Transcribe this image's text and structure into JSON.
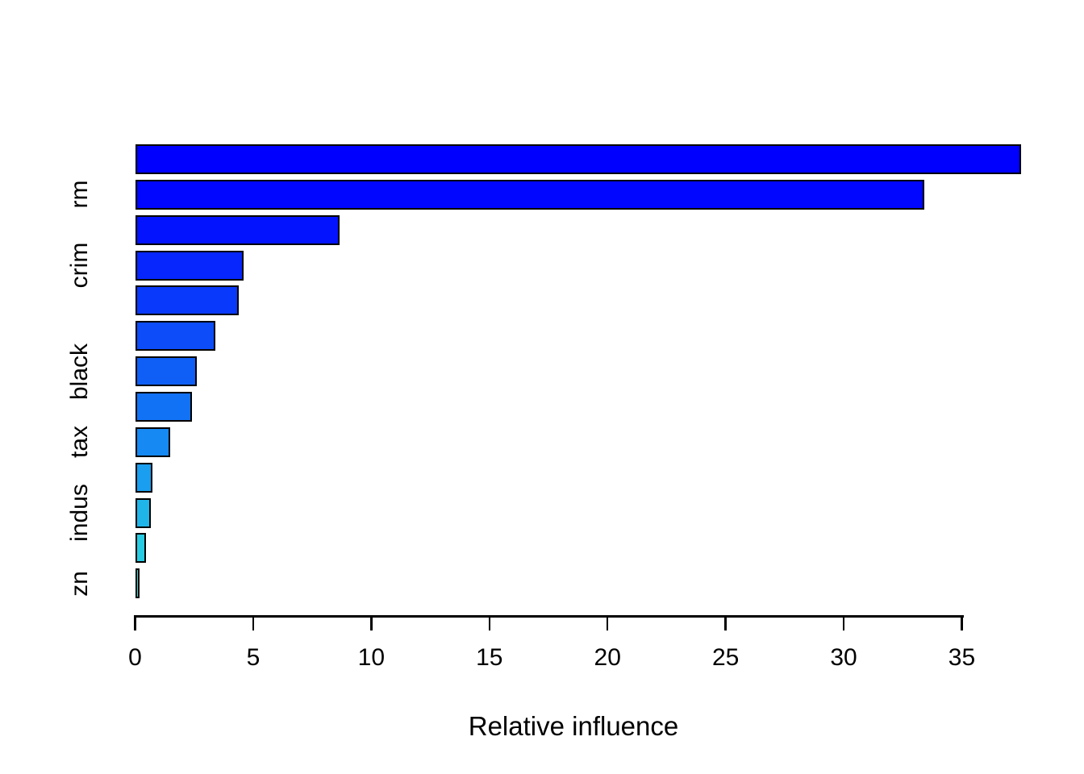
{
  "chart_data": {
    "type": "bar",
    "orientation": "horizontal",
    "title": "",
    "xlabel": "Relative influence",
    "ylabel": "",
    "xlim": [
      0,
      37.5
    ],
    "axis_range": [
      0,
      35
    ],
    "x_ticks": [
      0,
      5,
      10,
      15,
      20,
      25,
      30,
      35
    ],
    "grid": "off",
    "legend": "none",
    "bars": [
      {
        "label": "",
        "value": 37.5,
        "color": "#0000ff"
      },
      {
        "label": "rm",
        "value": 33.4,
        "color": "#0006ff"
      },
      {
        "label": "",
        "value": 8.65,
        "color": "#0313fe"
      },
      {
        "label": "crim",
        "value": 4.6,
        "color": "#0626fd"
      },
      {
        "label": "",
        "value": 4.4,
        "color": "#0939fb"
      },
      {
        "label": "",
        "value": 3.4,
        "color": "#0c4cf9"
      },
      {
        "label": "black",
        "value": 2.6,
        "color": "#0f5ff7"
      },
      {
        "label": "",
        "value": 2.4,
        "color": "#1272f5"
      },
      {
        "label": "tax",
        "value": 1.5,
        "color": "#1689f3"
      },
      {
        "label": "",
        "value": 0.75,
        "color": "#1a9eef"
      },
      {
        "label": "indus",
        "value": 0.68,
        "color": "#20b5e8"
      },
      {
        "label": "",
        "value": 0.45,
        "color": "#27cce2"
      },
      {
        "label": "zn",
        "value": 0.2,
        "color": "#2ee0db"
      }
    ],
    "bar_edge_color": "#000000",
    "text_color": "#000000",
    "background_color": "#ffffff"
  }
}
